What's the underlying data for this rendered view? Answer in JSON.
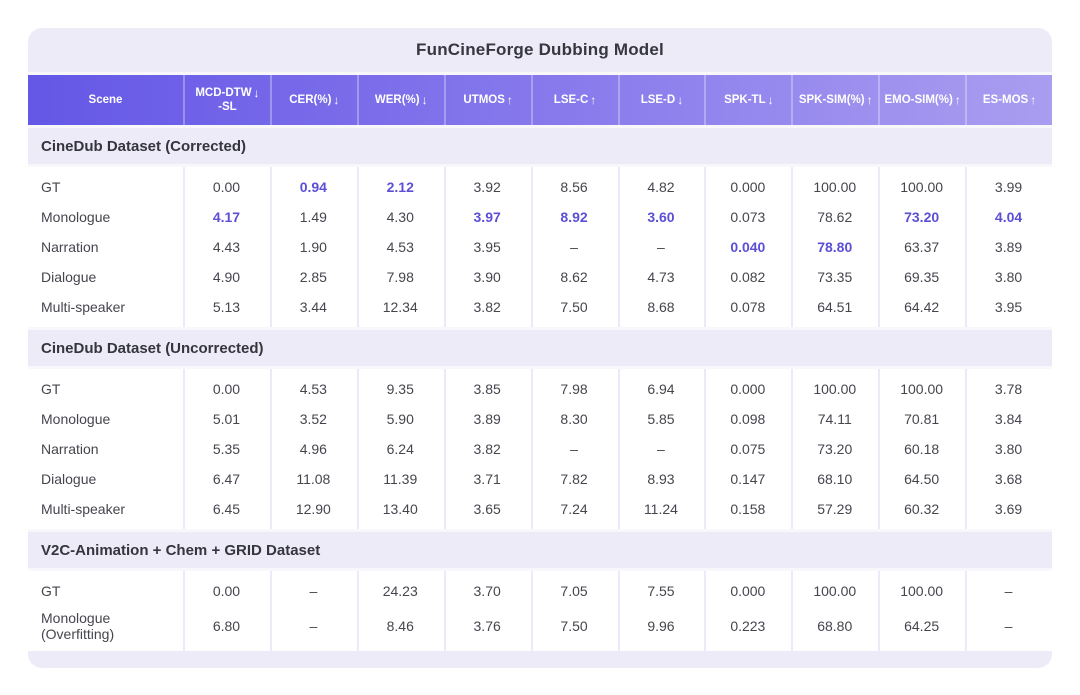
{
  "title": "FunCineForge Dubbing Model",
  "icons": {
    "up": "↑",
    "down": "↓"
  },
  "colors": {
    "header_gradient_left": "#6457e6",
    "header_gradient_right": "#a99df0",
    "card_background": "#ecebf7",
    "row_background": "#ffffff",
    "best_value_highlight": "#5b4fd6",
    "header_text": "#ffffff",
    "body_text": "#45454e"
  },
  "chart_data": {
    "type": "table",
    "title": "FunCineForge Dubbing Model",
    "columns": [
      {
        "label": "Scene",
        "dir": ""
      },
      {
        "label": "MCD-DTW",
        "dir": "down",
        "sub": "-SL"
      },
      {
        "label": "CER(%)",
        "dir": "down"
      },
      {
        "label": "WER(%)",
        "dir": "down"
      },
      {
        "label": "UTMOS",
        "dir": "up"
      },
      {
        "label": "LSE-C",
        "dir": "up"
      },
      {
        "label": "LSE-D",
        "dir": "down"
      },
      {
        "label": "SPK-TL",
        "dir": "down"
      },
      {
        "label": "SPK-SIM(%)",
        "dir": "up"
      },
      {
        "label": "EMO-SIM(%)",
        "dir": "up"
      },
      {
        "label": "ES-MOS",
        "dir": "up"
      }
    ],
    "sections": [
      {
        "title": "CineDub Dataset (Corrected)",
        "rows": [
          {
            "scene": [
              "GT"
            ],
            "values": [
              "0.00",
              "0.94",
              "2.12",
              "3.92",
              "8.56",
              "4.82",
              "0.000",
              "100.00",
              "100.00",
              "3.99"
            ],
            "bold": [
              1,
              2
            ]
          },
          {
            "scene": [
              "Monologue"
            ],
            "values": [
              "4.17",
              "1.49",
              "4.30",
              "3.97",
              "8.92",
              "3.60",
              "0.073",
              "78.62",
              "73.20",
              "4.04"
            ],
            "bold": [
              0,
              3,
              4,
              5,
              8,
              9
            ]
          },
          {
            "scene": [
              "Narration"
            ],
            "values": [
              "4.43",
              "1.90",
              "4.53",
              "3.95",
              "–",
              "–",
              "0.040",
              "78.80",
              "63.37",
              "3.89"
            ],
            "bold": [
              6,
              7
            ]
          },
          {
            "scene": [
              "Dialogue"
            ],
            "values": [
              "4.90",
              "2.85",
              "7.98",
              "3.90",
              "8.62",
              "4.73",
              "0.082",
              "73.35",
              "69.35",
              "3.80"
            ],
            "bold": []
          },
          {
            "scene": [
              "Multi-speaker"
            ],
            "values": [
              "5.13",
              "3.44",
              "12.34",
              "3.82",
              "7.50",
              "8.68",
              "0.078",
              "64.51",
              "64.42",
              "3.95"
            ],
            "bold": []
          }
        ]
      },
      {
        "title": "CineDub Dataset (Uncorrected)",
        "rows": [
          {
            "scene": [
              "GT"
            ],
            "values": [
              "0.00",
              "4.53",
              "9.35",
              "3.85",
              "7.98",
              "6.94",
              "0.000",
              "100.00",
              "100.00",
              "3.78"
            ],
            "bold": []
          },
          {
            "scene": [
              "Monologue"
            ],
            "values": [
              "5.01",
              "3.52",
              "5.90",
              "3.89",
              "8.30",
              "5.85",
              "0.098",
              "74.11",
              "70.81",
              "3.84"
            ],
            "bold": []
          },
          {
            "scene": [
              "Narration"
            ],
            "values": [
              "5.35",
              "4.96",
              "6.24",
              "3.82",
              "–",
              "–",
              "0.075",
              "73.20",
              "60.18",
              "3.80"
            ],
            "bold": []
          },
          {
            "scene": [
              "Dialogue"
            ],
            "values": [
              "6.47",
              "11.08",
              "11.39",
              "3.71",
              "7.82",
              "8.93",
              "0.147",
              "68.10",
              "64.50",
              "3.68"
            ],
            "bold": []
          },
          {
            "scene": [
              "Multi-speaker"
            ],
            "values": [
              "6.45",
              "12.90",
              "13.40",
              "3.65",
              "7.24",
              "11.24",
              "0.158",
              "57.29",
              "60.32",
              "3.69"
            ],
            "bold": []
          }
        ]
      },
      {
        "title": "V2C-Animation + Chem + GRID Dataset",
        "rows": [
          {
            "scene": [
              "GT"
            ],
            "values": [
              "0.00",
              "–",
              "24.23",
              "3.70",
              "7.05",
              "7.55",
              "0.000",
              "100.00",
              "100.00",
              "–"
            ],
            "bold": []
          },
          {
            "scene": [
              "Monologue",
              "(Overfitting)"
            ],
            "values": [
              "6.80",
              "–",
              "8.46",
              "3.76",
              "7.50",
              "9.96",
              "0.223",
              "68.80",
              "64.25",
              "–"
            ],
            "bold": []
          }
        ]
      }
    ]
  }
}
